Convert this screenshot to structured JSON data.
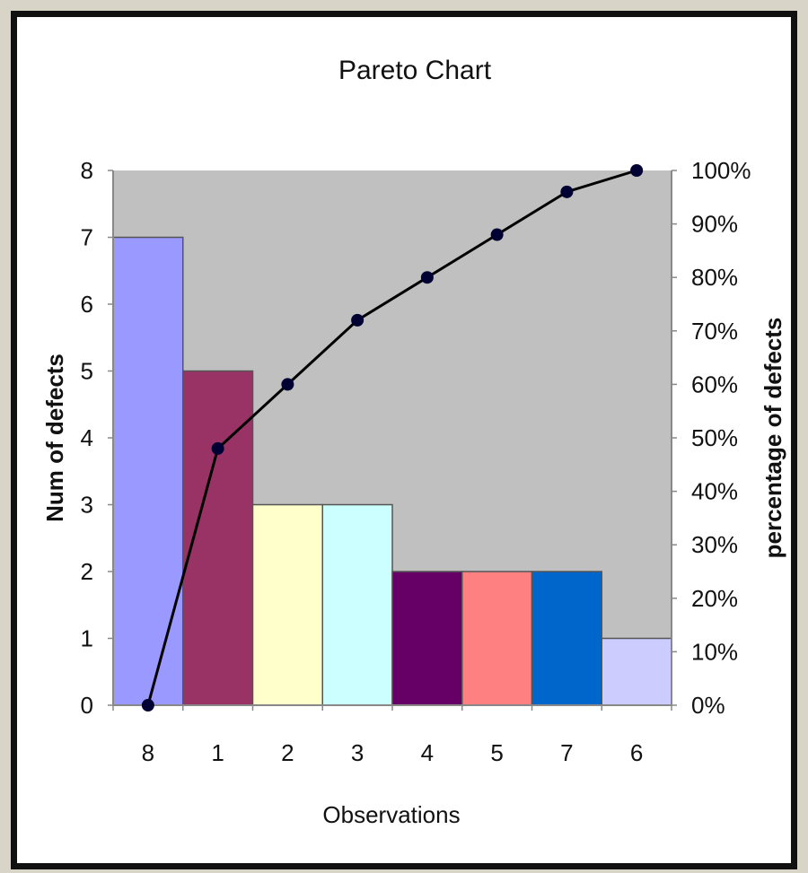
{
  "chart_data": {
    "type": "bar",
    "title": "Pareto Chart",
    "xlabel": "Observations",
    "ylabel": "Num of defects",
    "y2label": "percentage of defects",
    "categories": [
      "8",
      "1",
      "2",
      "3",
      "4",
      "5",
      "7",
      "6"
    ],
    "series": [
      {
        "type": "bar",
        "values": [
          7,
          5,
          3,
          3,
          2,
          2,
          2,
          1
        ],
        "colors": [
          "#9999ff",
          "#993366",
          "#ffffcc",
          "#ccffff",
          "#660066",
          "#ff8080",
          "#0066cc",
          "#ccccff"
        ]
      },
      {
        "type": "line",
        "axis": "secondary",
        "values": [
          0,
          48,
          60,
          72,
          80,
          88,
          96,
          100
        ],
        "color": "#000000"
      }
    ],
    "ylim": [
      0,
      8
    ],
    "y2lim": [
      0,
      100
    ],
    "yticks": [
      "0",
      "1",
      "2",
      "3",
      "4",
      "5",
      "6",
      "7",
      "8"
    ],
    "y2ticks": [
      "0%",
      "10%",
      "20%",
      "30%",
      "40%",
      "50%",
      "60%",
      "70%",
      "80%",
      "90%",
      "100%"
    ],
    "plot_background": "#c0c0c0",
    "grid": false,
    "legend": "none"
  }
}
